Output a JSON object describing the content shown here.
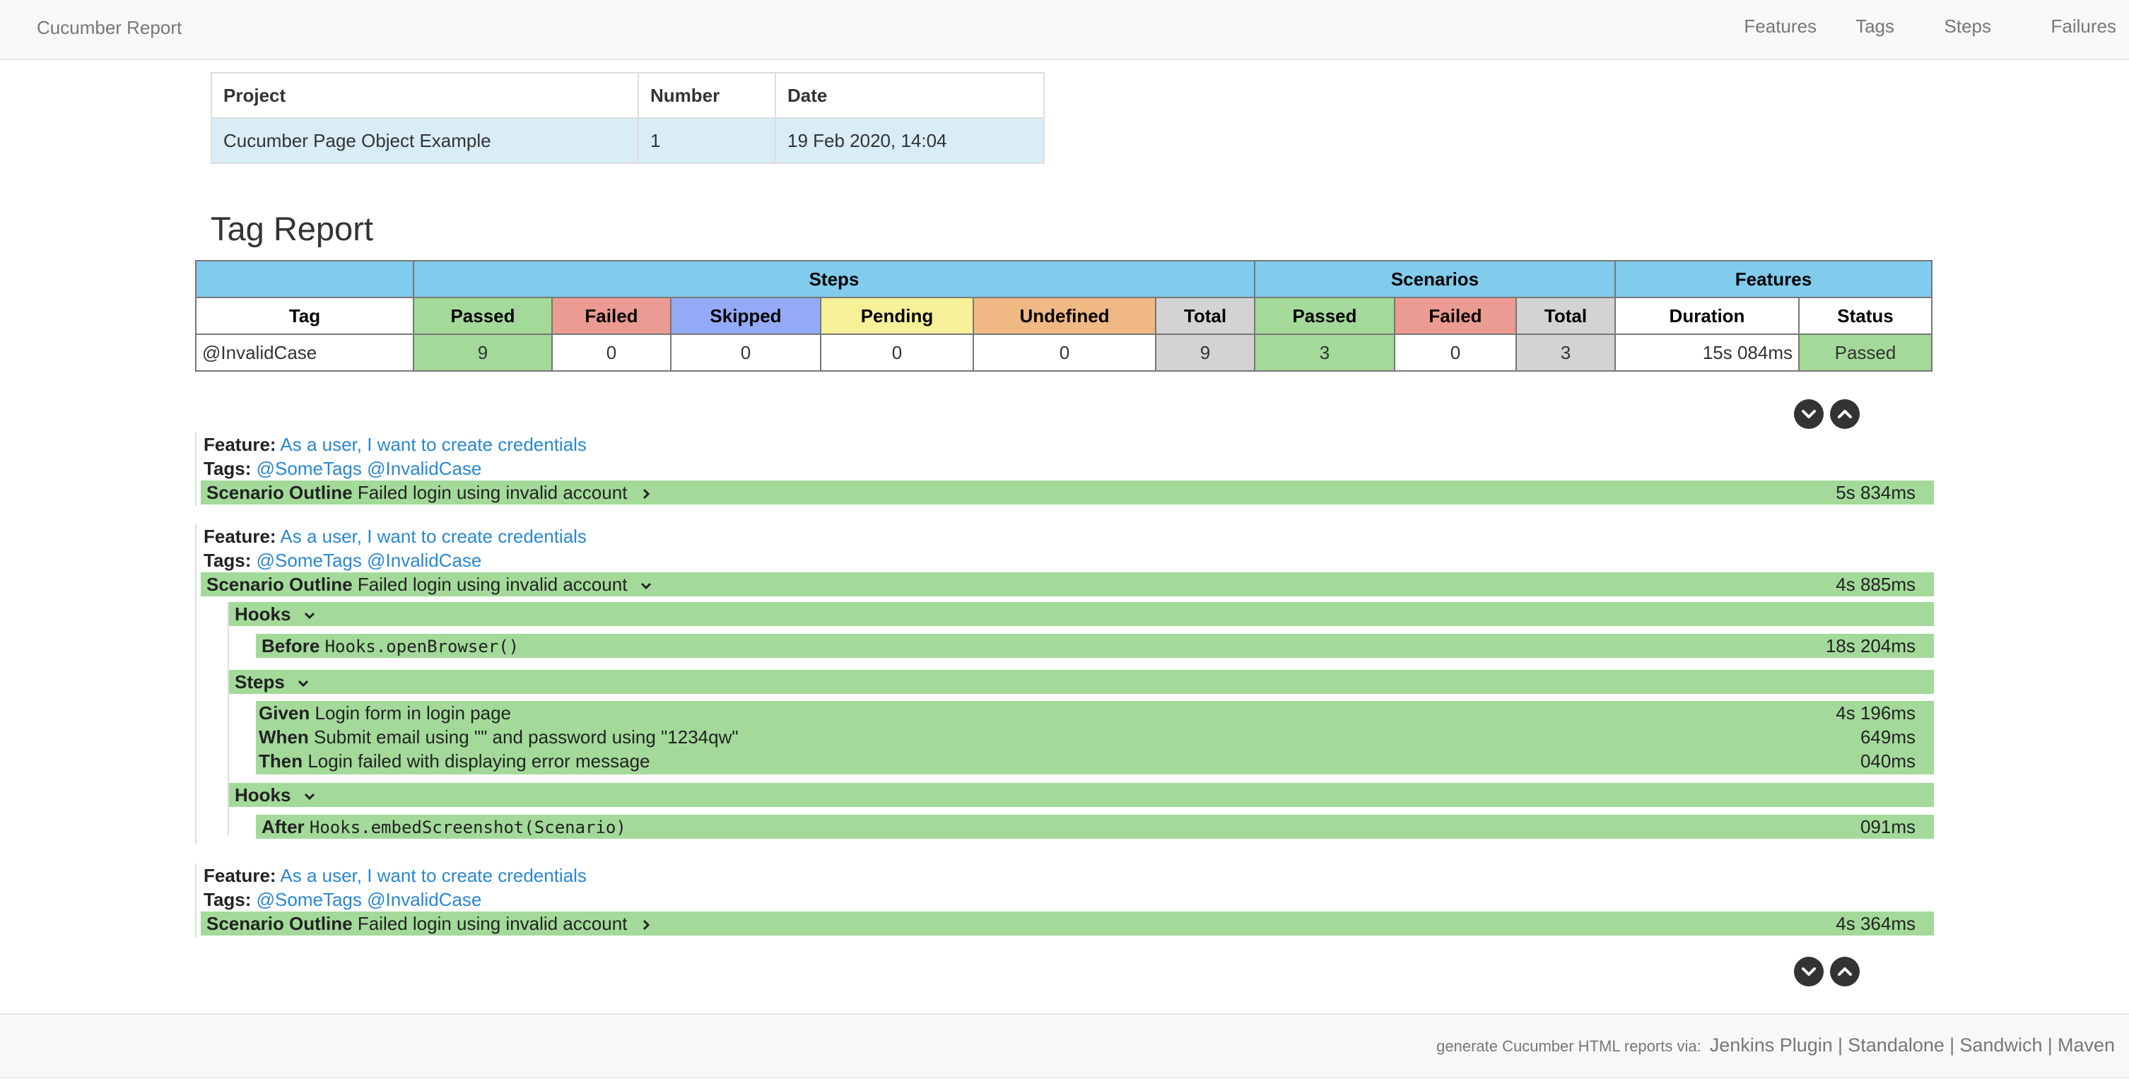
{
  "navbar": {
    "brand": "Cucumber Report",
    "links": [
      "Features",
      "Tags",
      "Steps",
      "Failures"
    ]
  },
  "build": {
    "headers": [
      "Project",
      "Number",
      "Date"
    ],
    "row": [
      "Cucumber Page Object Example",
      "1",
      "19 Feb 2020, 14:04"
    ]
  },
  "report_title": "Tag Report",
  "stats": {
    "group_headers": [
      "Steps",
      "Scenarios",
      "Features"
    ],
    "sub_headers": [
      "Tag",
      "Passed",
      "Failed",
      "Skipped",
      "Pending",
      "Undefined",
      "Total",
      "Passed",
      "Failed",
      "Total",
      "Duration",
      "Status"
    ],
    "row": {
      "tag": "@InvalidCase",
      "steps_passed": "9",
      "steps_failed": "0",
      "steps_skipped": "0",
      "steps_pending": "0",
      "steps_undefined": "0",
      "steps_total": "9",
      "scen_passed": "3",
      "scen_failed": "0",
      "scen_total": "3",
      "duration": "15s 084ms",
      "status": "Passed"
    }
  },
  "features": [
    {
      "feature_label": "Feature:",
      "feature_name": "As a user, I want to create credentials",
      "tags_label": "Tags:",
      "tags": "@SomeTags @InvalidCase",
      "scenario_keyword": "Scenario Outline",
      "scenario_name": "Failed login using invalid account",
      "duration": "5s 834ms"
    },
    {
      "feature_label": "Feature:",
      "feature_name": "As a user, I want to create credentials",
      "tags_label": "Tags:",
      "tags": "@SomeTags @InvalidCase",
      "scenario_keyword": "Scenario Outline",
      "scenario_name": "Failed login using invalid account",
      "duration": "4s 885ms",
      "hooks_label": "Hooks",
      "before_keyword": "Before",
      "before_name": "Hooks.openBrowser()",
      "before_duration": "18s 204ms",
      "steps_label": "Steps",
      "steps": [
        {
          "keyword": "Given",
          "name": "Login form in login page",
          "duration": "4s 196ms"
        },
        {
          "keyword": "When",
          "name": "Submit email using \"\" and password using \"1234qw\"",
          "duration": "649ms"
        },
        {
          "keyword": "Then",
          "name": "Login failed with displaying error message",
          "duration": "040ms"
        }
      ],
      "after_hooks_label": "Hooks",
      "after_keyword": "After",
      "after_name": "Hooks.embedScreenshot(Scenario)",
      "after_duration": "091ms"
    },
    {
      "feature_label": "Feature:",
      "feature_name": "As a user, I want to create credentials",
      "tags_label": "Tags:",
      "tags": "@SomeTags @InvalidCase",
      "scenario_keyword": "Scenario Outline",
      "scenario_name": "Failed login using invalid account",
      "duration": "4s 364ms"
    }
  ],
  "footer": {
    "label": "generate Cucumber HTML reports via:",
    "links": [
      "Jenkins Plugin",
      "Standalone",
      "Sandwich",
      "Maven"
    ],
    "separator": "|"
  },
  "colors": {
    "passed": "#a3da9a",
    "failed": "#eb9b91",
    "skipped": "#93aaf7",
    "pending": "#f6f099",
    "undefined": "#f0b883",
    "total": "#d3d3d3",
    "header": "#81cbec",
    "link": "#2a87d0"
  },
  "icons": {
    "expand_all": "chevron-down-circle-icon",
    "collapse_all": "chevron-up-circle-icon"
  }
}
